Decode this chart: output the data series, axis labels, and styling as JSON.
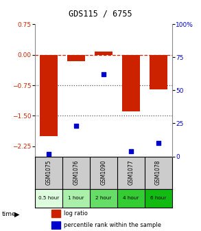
{
  "title": "GDS115 / 6755",
  "samples": [
    "GSM1075",
    "GSM1076",
    "GSM1090",
    "GSM1077",
    "GSM1078"
  ],
  "time_labels": [
    "0.5 hour",
    "1 hour",
    "2 hour",
    "4 hour",
    "6 hour"
  ],
  "time_colors": [
    "#ddfcdd",
    "#aaf0aa",
    "#66dd66",
    "#33cc33",
    "#11bb11"
  ],
  "log_ratios": [
    -2.0,
    -0.15,
    0.08,
    -1.4,
    -0.85
  ],
  "percentile_ranks": [
    2,
    23,
    62,
    4,
    10
  ],
  "bar_color": "#cc2200",
  "dot_color": "#0000cc",
  "ylim_left": [
    -2.5,
    0.75
  ],
  "ylim_right": [
    0,
    100
  ],
  "yticks_left": [
    0.75,
    0,
    -0.75,
    -1.5,
    -2.25
  ],
  "yticks_right": [
    100,
    75,
    50,
    25,
    0
  ],
  "hlines": [
    0,
    -0.75,
    -1.5
  ],
  "hline_styles": [
    "--",
    ":",
    ":"
  ],
  "hline_colors": [
    "#cc2200",
    "#555555",
    "#555555"
  ],
  "background_color": "#ffffff",
  "sample_bg": "#cccccc",
  "legend_dot_size": 6
}
